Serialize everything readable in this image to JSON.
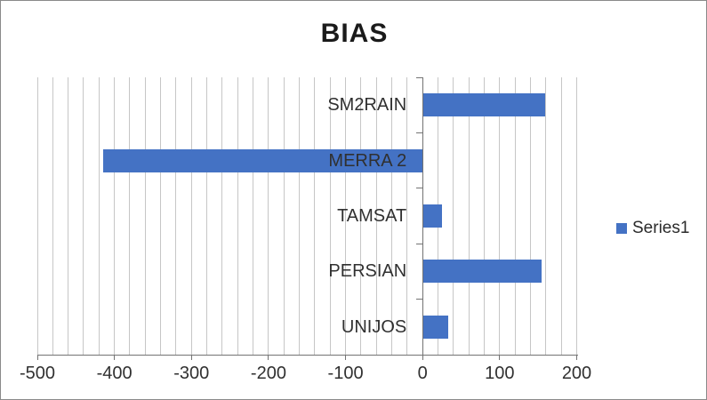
{
  "window": {
    "background": "#ffffff",
    "border_color": "#8a8a8a"
  },
  "chart_data": {
    "type": "bar",
    "orientation": "horizontal",
    "title": "BIAS",
    "categories": [
      "SM2RAIN",
      "MERRA 2",
      "TAMSAT",
      "PERSIAN",
      "UNIJOS"
    ],
    "values": [
      159,
      -415,
      25,
      155,
      33
    ],
    "series": [
      {
        "name": "Series1",
        "values": [
          159,
          -415,
          25,
          155,
          33
        ]
      }
    ],
    "legend": {
      "position": "right",
      "entries": [
        "Series1"
      ]
    },
    "xlabel": "",
    "ylabel": "",
    "xlim": [
      -500,
      200
    ],
    "x_major_unit": 100,
    "x_minor_unit": 20,
    "x_tick_labels": [
      "-500",
      "-400",
      "-300",
      "-200",
      "-100",
      "0",
      "100",
      "200"
    ],
    "grid": "vertical-minor-gridlines-on",
    "colors": {
      "bar": "#4472C4",
      "gridline": "#c6c6c6",
      "axis": "#737373",
      "tick_label": "#303030",
      "title": "#1a1a1a"
    }
  }
}
